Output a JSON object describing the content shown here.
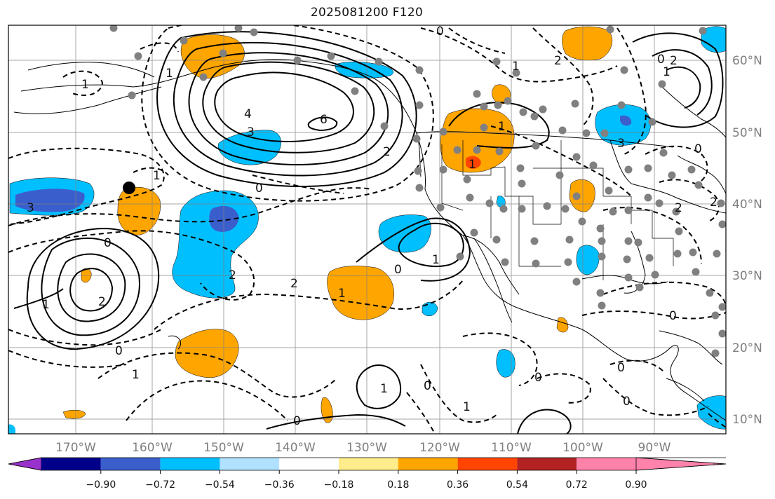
{
  "title": "2025081200 F120",
  "lon_labels": [
    "170°W",
    "160°W",
    "150°W",
    "140°W",
    "130°W",
    "120°W",
    "110°W",
    "100°W",
    "90°W"
  ],
  "lat_labels": [
    "60°N",
    "50°N",
    "40°N",
    "30°N",
    "20°N",
    "10°N"
  ],
  "colorbar": {
    "colors": [
      "#9932cc",
      "#00008b",
      "#3a5fcd",
      "#00bfff",
      "#b0e2ff",
      "#ffffff",
      "#ffec8b",
      "#ffa500",
      "#ff4500",
      "#b22222",
      "#ff82ab"
    ],
    "tick_labels": [
      "−0.90",
      "−0.72",
      "−0.54",
      "−0.36",
      "−0.18",
      "0.18",
      "0.36",
      "0.54",
      "0.72",
      "0.90"
    ]
  },
  "contour_labels": [
    "0",
    "0",
    "1",
    "2",
    "3",
    "4",
    "6",
    "1",
    "0",
    "2",
    "3",
    "1",
    "2",
    "2",
    "1",
    "0",
    "1",
    "1",
    "1",
    "0",
    "2",
    "1",
    "0",
    "0",
    "1",
    "0",
    "0",
    "0",
    "1",
    "2",
    "0",
    "1",
    "2",
    "3",
    "1",
    "0",
    "0",
    "1",
    "2"
  ],
  "colors": {
    "gridline": "#808080",
    "contour": "#000000",
    "coastline": "#000000",
    "station_dot": "#808080",
    "marker": "#000000"
  }
}
